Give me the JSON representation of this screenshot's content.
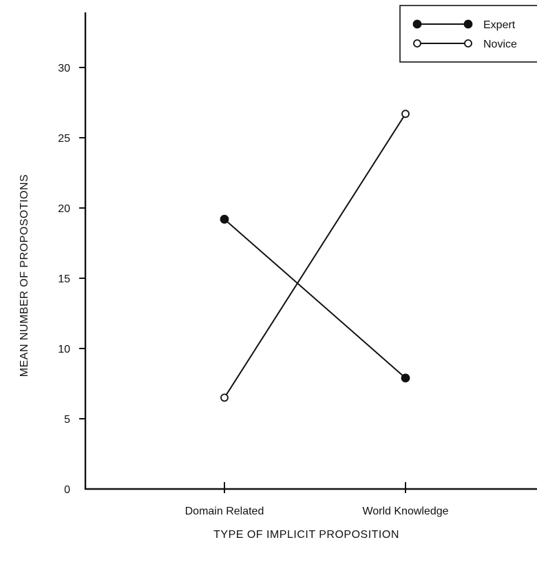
{
  "chart_data": {
    "type": "line",
    "title": "",
    "xlabel": "TYPE OF IMPLICIT PROPOSITION",
    "ylabel": "MEAN NUMBER OF PROPOSOTIONS",
    "categories": [
      "Domain Related",
      "World Knowledge"
    ],
    "ylim": [
      0,
      33
    ],
    "yticks": [
      0,
      5,
      10,
      15,
      20,
      25,
      30
    ],
    "grid": false,
    "legend_position": "top-right",
    "series": [
      {
        "name": "Expert",
        "marker": "filled-circle",
        "values": [
          19.2,
          7.9
        ]
      },
      {
        "name": "Novice",
        "marker": "open-circle",
        "values": [
          6.5,
          26.7
        ]
      }
    ]
  }
}
